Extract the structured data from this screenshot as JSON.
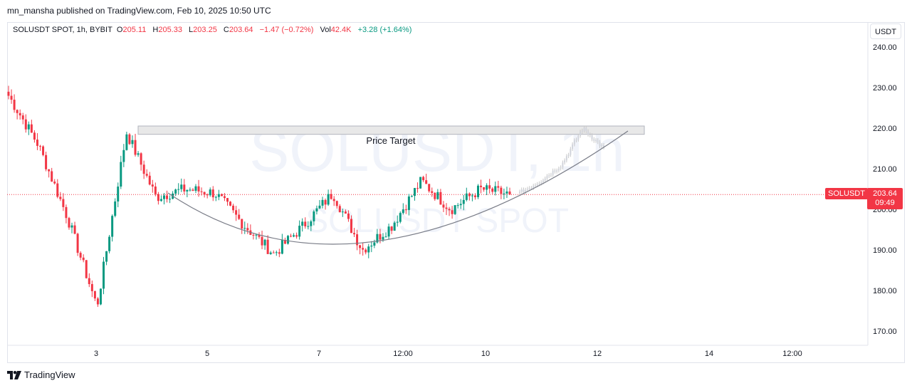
{
  "header": {
    "published_line": "mn_mansha published on TradingView.com, Feb 10, 2025 10:50 UTC"
  },
  "legend": {
    "symbol": "SOLUSDT SPOT, 1h, BYBIT",
    "open_label": "O",
    "open": "205.11",
    "high_label": "H",
    "high": "205.33",
    "low_label": "L",
    "low": "203.25",
    "close_label": "C",
    "close": "203.64",
    "change": "−1.47 (−0.72%)",
    "vol_label": "Vol",
    "vol": "42.4K",
    "vol_change": "+3.28 (+1.64%)"
  },
  "currency_button": "USDT",
  "price_tag": {
    "symbol": "SOLUSDT",
    "price": "203.64",
    "countdown": "09:49"
  },
  "footer": {
    "brand": "TradingView"
  },
  "colors": {
    "up": "#089981",
    "down": "#f23645",
    "grid_text": "#131722",
    "arc": "#787b86"
  },
  "chart_data": {
    "type": "candlestick",
    "watermark": {
      "line1": "SOLUSDT, 1h",
      "line2": "SOLUSDT SPOT"
    },
    "y_ticks": [
      240,
      230,
      220,
      210,
      200,
      190,
      180,
      170
    ],
    "y_tick_labels": [
      "240.00",
      "230.00",
      "220.00",
      "210.00",
      "200.00",
      "190.00",
      "180.00",
      "170.00"
    ],
    "ylim": [
      165,
      250
    ],
    "x_tick_labels": [
      "3",
      "5",
      "7",
      "12:00",
      "10",
      "12",
      "14",
      "12:00"
    ],
    "last_price": 203.64,
    "annotations": [
      {
        "type": "rectangle",
        "label": "Price Target",
        "price_low": 219,
        "price_high": 220
      },
      {
        "type": "arc",
        "description": "rounded bottom"
      }
    ],
    "candles_approx_close_path": [
      {
        "x": "Feb 1",
        "price": 228
      },
      {
        "x": "Feb 2",
        "price": 216
      },
      {
        "x": "Feb 3",
        "price": 198
      },
      {
        "x": "Feb 3",
        "price": 176
      },
      {
        "x": "Feb 4",
        "price": 219
      },
      {
        "x": "Feb 4",
        "price": 203
      },
      {
        "x": "Feb 5",
        "price": 205
      },
      {
        "x": "Feb 6",
        "price": 204
      },
      {
        "x": "Feb 6",
        "price": 196
      },
      {
        "x": "Feb 7",
        "price": 189
      },
      {
        "x": "Feb 7",
        "price": 196
      },
      {
        "x": "Feb 8",
        "price": 204
      },
      {
        "x": "Feb 8",
        "price": 190
      },
      {
        "x": "Feb 8",
        "price": 196
      },
      {
        "x": "Feb 9",
        "price": 207
      },
      {
        "x": "Feb 9",
        "price": 200
      },
      {
        "x": "Feb 10",
        "price": 205
      },
      {
        "x": "Feb 10",
        "price": 203.64
      }
    ],
    "projection_path": [
      {
        "x": "Feb 10",
        "price": 204
      },
      {
        "x": "Feb 11",
        "price": 207
      },
      {
        "x": "Feb 11",
        "price": 211
      },
      {
        "x": "Feb 12",
        "price": 220
      },
      {
        "x": "Feb 12",
        "price": 215
      }
    ]
  }
}
